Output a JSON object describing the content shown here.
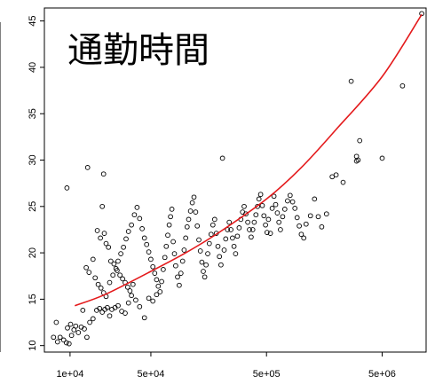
{
  "chart_data": {
    "type": "scatter",
    "title": "通勤時間",
    "xscale": "log",
    "xlim": [
      6000,
      12000000
    ],
    "ylim": [
      9.3,
      46.4
    ],
    "x_ticks": [
      10000,
      50000,
      500000,
      5000000
    ],
    "x_tick_labels": [
      "1e+04",
      "5e+04",
      "5e+05",
      "5e+06"
    ],
    "y_ticks": [
      10,
      15,
      20,
      25,
      30,
      35,
      40,
      45
    ],
    "y_tick_labels": [
      "10",
      "15",
      "20",
      "25",
      "30",
      "35",
      "40",
      "45"
    ],
    "point_color": "#000000",
    "curve_color": "#e41a1c",
    "curve": {
      "x": [
        11000,
        20000,
        50000,
        100000,
        200000,
        500000,
        1000000,
        2000000,
        5000000,
        11000000
      ],
      "y": [
        14.3,
        15.5,
        18.0,
        20.0,
        22.3,
        25.8,
        29.2,
        33.3,
        39.0,
        45.7
      ]
    },
    "points": [
      [
        7800,
        10.4
      ],
      [
        7200,
        10.9
      ],
      [
        7600,
        12.5
      ],
      [
        8200,
        10.9
      ],
      [
        8800,
        10.6
      ],
      [
        9300,
        10.3
      ],
      [
        9800,
        10.2
      ],
      [
        10300,
        11.1
      ],
      [
        10800,
        11.7
      ],
      [
        11200,
        12.1
      ],
      [
        11800,
        11.4
      ],
      [
        9500,
        11.9
      ],
      [
        10100,
        12.3
      ],
      [
        12500,
        12.0
      ],
      [
        12900,
        13.8
      ],
      [
        13300,
        11.8
      ],
      [
        14000,
        10.9
      ],
      [
        14800,
        12.5
      ],
      [
        15800,
        12.9
      ],
      [
        17000,
        13.8
      ],
      [
        18000,
        14.0
      ],
      [
        19000,
        13.6
      ],
      [
        20000,
        13.9
      ],
      [
        21000,
        14.1
      ],
      [
        22000,
        13.2
      ],
      [
        23000,
        13.9
      ],
      [
        24500,
        14.1
      ],
      [
        26000,
        14.3
      ],
      [
        28000,
        13.7
      ],
      [
        30000,
        13.5
      ],
      [
        32000,
        14.6
      ],
      [
        34000,
        15.4
      ],
      [
        37000,
        14.9
      ],
      [
        40000,
        14.2
      ],
      [
        44000,
        13.0
      ],
      [
        48000,
        15.1
      ],
      [
        52000,
        14.8
      ],
      [
        56000,
        15.5
      ],
      [
        9400,
        27.0
      ],
      [
        14200,
        29.2
      ],
      [
        19500,
        28.5
      ],
      [
        19000,
        25.0
      ],
      [
        17200,
        22.4
      ],
      [
        18300,
        21.6
      ],
      [
        19800,
        22.1
      ],
      [
        20500,
        21.0
      ],
      [
        21500,
        20.6
      ],
      [
        22500,
        19.1
      ],
      [
        24000,
        18.8
      ],
      [
        25500,
        18.1
      ],
      [
        27000,
        17.6
      ],
      [
        28500,
        17.2
      ],
      [
        30000,
        16.8
      ],
      [
        31500,
        16.3
      ],
      [
        33000,
        15.9
      ],
      [
        35000,
        16.6
      ],
      [
        13800,
        18.4
      ],
      [
        14600,
        17.9
      ],
      [
        15800,
        19.3
      ],
      [
        16500,
        17.3
      ],
      [
        17500,
        16.6
      ],
      [
        18500,
        16.2
      ],
      [
        19500,
        15.7
      ],
      [
        20500,
        15.3
      ],
      [
        22000,
        16.8
      ],
      [
        23500,
        17.6
      ],
      [
        25000,
        18.3
      ],
      [
        26000,
        19.1
      ],
      [
        27500,
        19.9
      ],
      [
        29000,
        20.6
      ],
      [
        30500,
        21.5
      ],
      [
        32000,
        22.3
      ],
      [
        34000,
        23.0
      ],
      [
        36000,
        24.1
      ],
      [
        38000,
        24.9
      ],
      [
        40000,
        23.7
      ],
      [
        42000,
        22.6
      ],
      [
        44000,
        21.6
      ],
      [
        46000,
        20.9
      ],
      [
        48000,
        20.1
      ],
      [
        50000,
        19.3
      ],
      [
        52000,
        18.5
      ],
      [
        54000,
        17.8
      ],
      [
        56000,
        17.1
      ],
      [
        58000,
        16.4
      ],
      [
        60000,
        15.8
      ],
      [
        62000,
        16.9
      ],
      [
        64000,
        18.2
      ],
      [
        66000,
        19.5
      ],
      [
        68000,
        20.7
      ],
      [
        70000,
        21.9
      ],
      [
        72000,
        23.0
      ],
      [
        74000,
        23.9
      ],
      [
        76000,
        24.7
      ],
      [
        78000,
        21.2
      ],
      [
        80000,
        19.9
      ],
      [
        82000,
        18.6
      ],
      [
        85000,
        17.4
      ],
      [
        88000,
        16.5
      ],
      [
        91000,
        17.8
      ],
      [
        94000,
        19.1
      ],
      [
        97000,
        20.3
      ],
      [
        100000,
        21.6
      ],
      [
        103000,
        22.8
      ],
      [
        106000,
        23.6
      ],
      [
        110000,
        24.5
      ],
      [
        114000,
        25.4
      ],
      [
        118000,
        26.0
      ],
      [
        122000,
        24.4
      ],
      [
        126000,
        22.9
      ],
      [
        130000,
        21.4
      ],
      [
        134000,
        20.2
      ],
      [
        138000,
        19.0
      ],
      [
        142000,
        18.0
      ],
      [
        146000,
        17.4
      ],
      [
        150000,
        18.7
      ],
      [
        155000,
        19.9
      ],
      [
        160000,
        21.0
      ],
      [
        166000,
        22.0
      ],
      [
        172000,
        23.0
      ],
      [
        178000,
        23.6
      ],
      [
        184000,
        22.1
      ],
      [
        190000,
        20.7
      ],
      [
        196000,
        19.6
      ],
      [
        202000,
        18.7
      ],
      [
        208000,
        30.2
      ],
      [
        215000,
        20.3
      ],
      [
        222000,
        21.5
      ],
      [
        230000,
        22.5
      ],
      [
        238000,
        23.3
      ],
      [
        246000,
        22.5
      ],
      [
        254000,
        21.6
      ],
      [
        262000,
        20.7
      ],
      [
        270000,
        19.9
      ],
      [
        280000,
        21.8
      ],
      [
        290000,
        22.7
      ],
      [
        300000,
        23.6
      ],
      [
        310000,
        24.4
      ],
      [
        320000,
        25.0
      ],
      [
        332000,
        24.2
      ],
      [
        344000,
        23.3
      ],
      [
        356000,
        22.5
      ],
      [
        368000,
        21.7
      ],
      [
        380000,
        22.5
      ],
      [
        392000,
        23.3
      ],
      [
        405000,
        24.1
      ],
      [
        418000,
        25.0
      ],
      [
        430000,
        25.8
      ],
      [
        445000,
        26.3
      ],
      [
        460000,
        25.1
      ],
      [
        475000,
        24.0
      ],
      [
        490000,
        23.0
      ],
      [
        505000,
        22.2
      ],
      [
        520000,
        23.6
      ],
      [
        540000,
        22.1
      ],
      [
        560000,
        24.8
      ],
      [
        580000,
        26.1
      ],
      [
        600000,
        25.2
      ],
      [
        620000,
        24.3
      ],
      [
        640000,
        23.3
      ],
      [
        660000,
        22.5
      ],
      [
        690000,
        23.9
      ],
      [
        720000,
        24.7
      ],
      [
        760000,
        25.6
      ],
      [
        800000,
        26.2
      ],
      [
        840000,
        25.5
      ],
      [
        880000,
        24.8
      ],
      [
        920000,
        23.8
      ],
      [
        960000,
        22.9
      ],
      [
        1000000,
        22.0
      ],
      [
        1050000,
        21.6
      ],
      [
        1100000,
        23.1
      ],
      [
        1200000,
        24.0
      ],
      [
        1300000,
        25.8
      ],
      [
        1400000,
        23.9
      ],
      [
        1500000,
        22.8
      ],
      [
        1650000,
        24.2
      ],
      [
        1850000,
        28.2
      ],
      [
        2000000,
        28.4
      ],
      [
        2300000,
        27.6
      ],
      [
        2700000,
        38.5
      ],
      [
        3000000,
        30.4
      ],
      [
        3200000,
        32.1
      ],
      [
        3000000,
        29.9
      ],
      [
        3100000,
        30.0
      ],
      [
        5000000,
        30.2
      ],
      [
        7500000,
        38.0
      ],
      [
        11000000,
        45.8
      ]
    ]
  }
}
